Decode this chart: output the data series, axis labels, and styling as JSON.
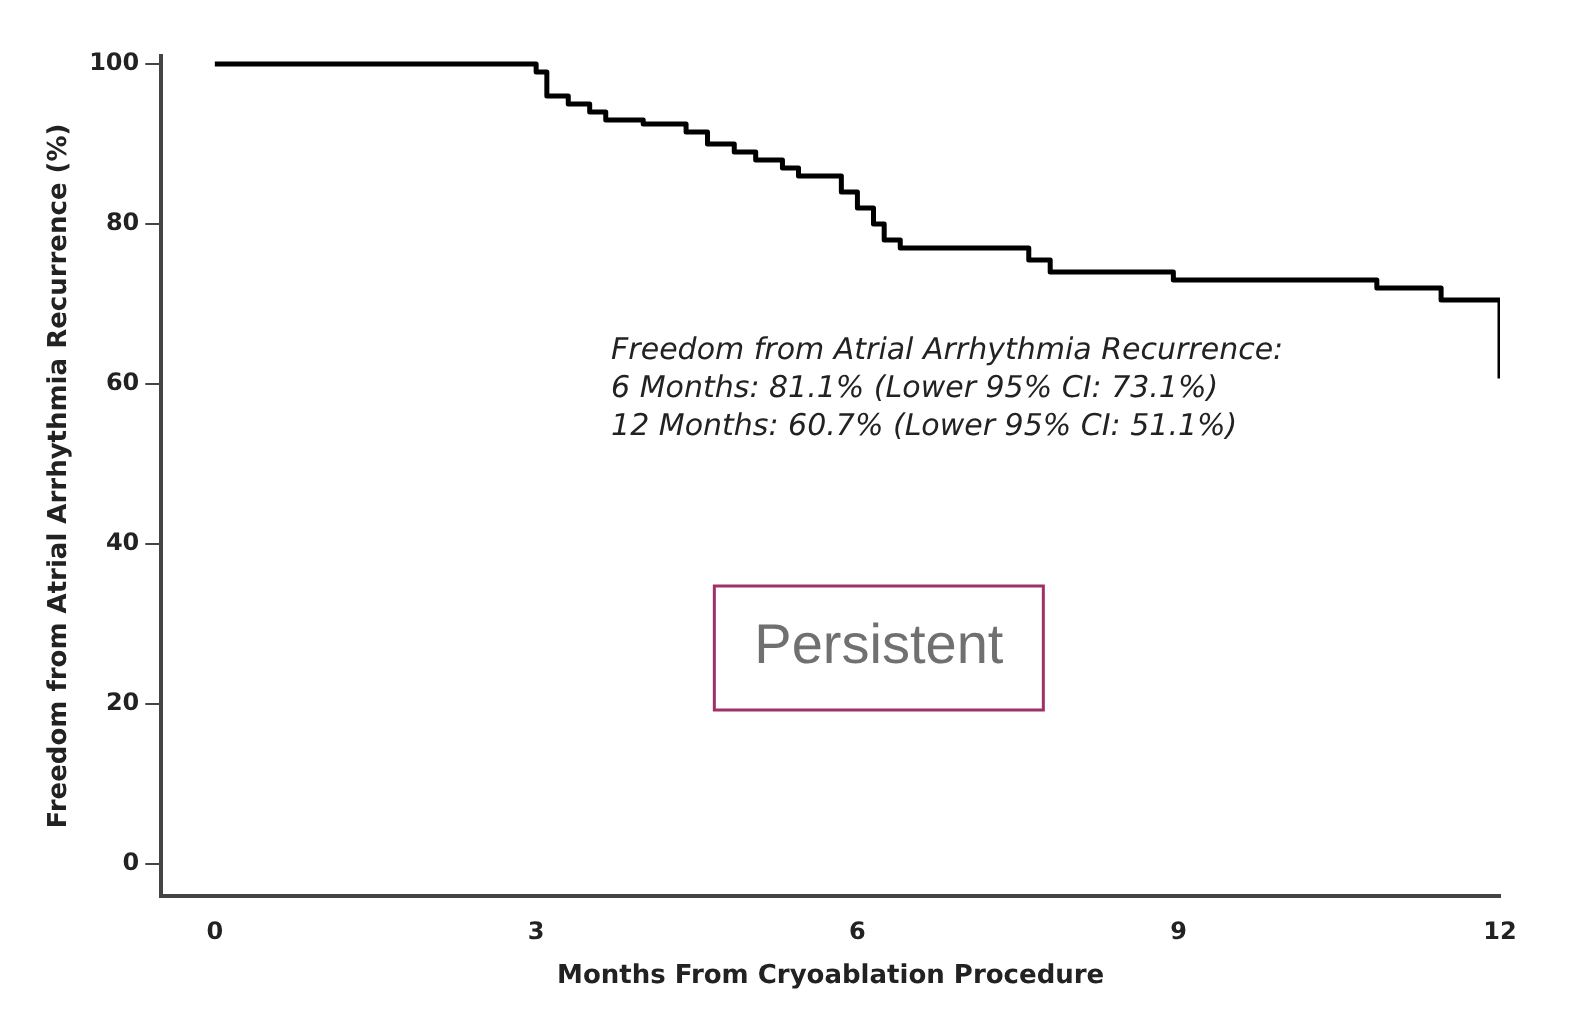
{
  "chart_data": {
    "type": "step",
    "xlabel": "Months From Cryoablation Procedure",
    "ylabel": "Freedom from Atrial Arrhythmia Recurrence (%)",
    "series": [
      {
        "color": "#000000",
        "x": [
          0,
          3.0,
          3.1,
          3.3,
          3.5,
          3.65,
          4.0,
          4.4,
          4.6,
          4.85,
          5.05,
          5.3,
          5.45,
          5.85,
          6.0,
          6.15,
          6.25,
          6.4,
          7.6,
          7.8,
          8.95,
          10.85,
          11.45,
          12
        ],
        "values": [
          100,
          99,
          96,
          95,
          94,
          93,
          92.5,
          91.5,
          90,
          89,
          88,
          87,
          86,
          84,
          82,
          80,
          78,
          77,
          75.5,
          74,
          73,
          72,
          70.5,
          60.7
        ]
      }
    ],
    "xlim": [
      -0.5,
      12
    ],
    "xticks": [
      0,
      3,
      6,
      9,
      12
    ],
    "ylim": [
      -4,
      101
    ],
    "yticks": [
      0,
      20,
      40,
      60,
      80,
      100
    ],
    "grid": false,
    "legend": false,
    "marker": "none",
    "line_style": "solid",
    "annotations": [
      "Freedom from Atrial Arrhythmia Recurrence:\n6 Months: 81.1% (Lower 95% CI: 73.1%)\n12 Months: 60.7% (Lower 95% CI: 51.1%)",
      "Persistent"
    ]
  }
}
